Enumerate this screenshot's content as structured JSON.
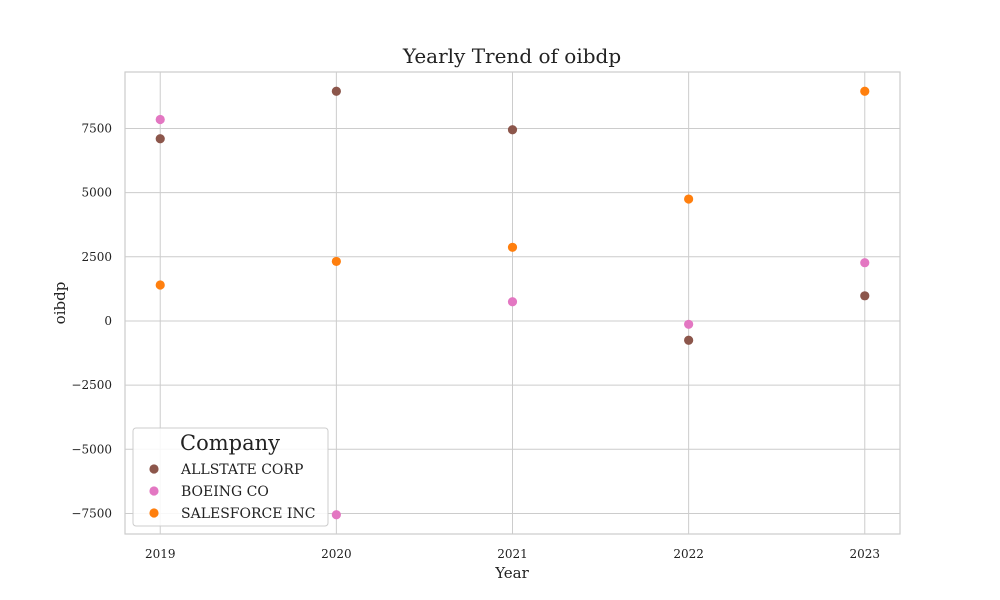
{
  "chart_data": {
    "type": "scatter",
    "title": "Yearly Trend of oibdp",
    "xlabel": "Year",
    "ylabel": "oibdp",
    "x": [
      2019,
      2020,
      2021,
      2022,
      2023
    ],
    "xlim": [
      2018.8,
      2023.2
    ],
    "ylim": [
      -8300,
      9700
    ],
    "x_ticks": [
      "2019",
      "2020",
      "2021",
      "2022",
      "2023"
    ],
    "y_ticks": [
      -7500,
      -5000,
      -2500,
      0,
      2500,
      5000,
      7500
    ],
    "y_tick_labels": [
      "−7500",
      "−5000",
      "−2500",
      "0",
      "2500",
      "5000",
      "7500"
    ],
    "grid": true,
    "legend": {
      "title": "Company",
      "position": "lower-left"
    },
    "series": [
      {
        "name": "ALLSTATE CORP",
        "color": "#8c564b",
        "values": [
          7100,
          8950,
          7450,
          -750,
          980
        ]
      },
      {
        "name": "BOEING CO",
        "color": "#e377c2",
        "values": [
          7850,
          -7550,
          750,
          -130,
          2270
        ]
      },
      {
        "name": "SALESFORCE INC",
        "color": "#ff7f0e",
        "values": [
          1400,
          2320,
          2870,
          4750,
          8950
        ]
      }
    ]
  }
}
